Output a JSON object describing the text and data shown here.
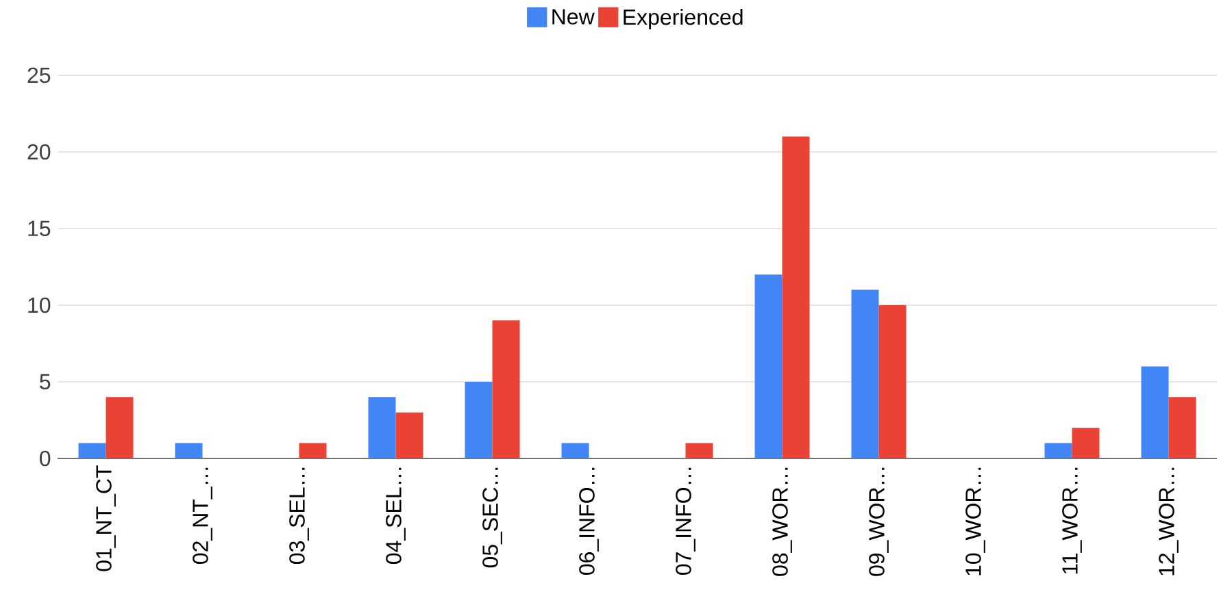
{
  "chart_data": {
    "type": "bar",
    "categories": [
      "01_NT_CT",
      "02_NT_…",
      "03_SEL…",
      "04_SEL…",
      "05_SEC…",
      "06_INFO…",
      "07_INFO…",
      "08_WOR…",
      "09_WOR…",
      "10_WOR…",
      "11_WOR…",
      "12_WOR…"
    ],
    "series": [
      {
        "name": "New",
        "color": "#4285f4",
        "values": [
          1,
          1,
          0,
          4,
          5,
          1,
          0,
          12,
          11,
          0,
          1,
          6
        ]
      },
      {
        "name": "Experienced",
        "color": "#ea4335",
        "values": [
          4,
          0,
          1,
          3,
          9,
          0,
          1,
          21,
          10,
          0,
          2,
          4
        ]
      }
    ],
    "ylim": [
      0,
      25
    ],
    "yticks": [
      0,
      5,
      10,
      15,
      20,
      25
    ],
    "grid": "y",
    "legend": "top"
  }
}
